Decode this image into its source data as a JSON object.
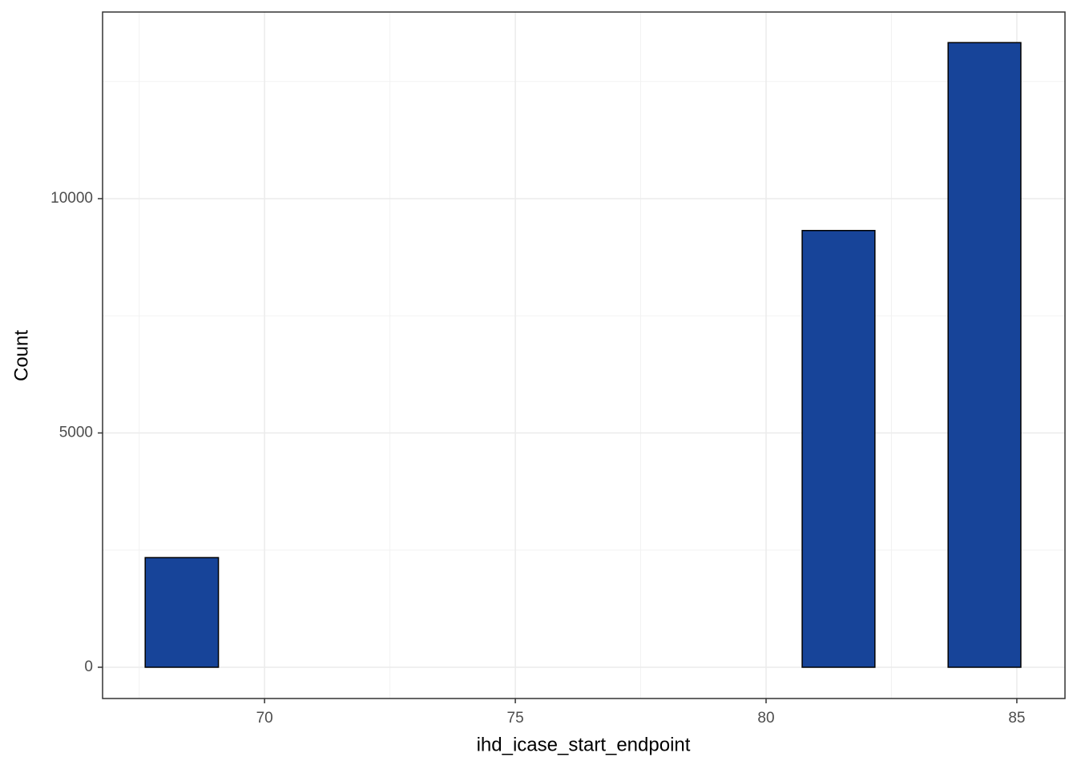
{
  "chart_data": {
    "type": "histogram",
    "x_label": "ihd_icase_start_endpoint",
    "y_label": "Count",
    "bins": [
      67.62,
      69.08,
      70.53,
      71.99,
      73.44,
      74.9,
      76.35,
      77.81,
      79.26,
      80.72,
      82.17,
      83.63,
      85.08
    ],
    "values": [
      2340,
      0,
      0,
      0,
      0,
      0,
      0,
      0,
      0,
      9320,
      0,
      13330
    ],
    "color": "#174499",
    "xlim": [
      66.77,
      85.96
    ],
    "ylim": [
      -667,
      13983
    ],
    "xticks": [
      70,
      75,
      80,
      85
    ],
    "yticks": [
      0,
      5000,
      10000
    ],
    "grid": true
  }
}
